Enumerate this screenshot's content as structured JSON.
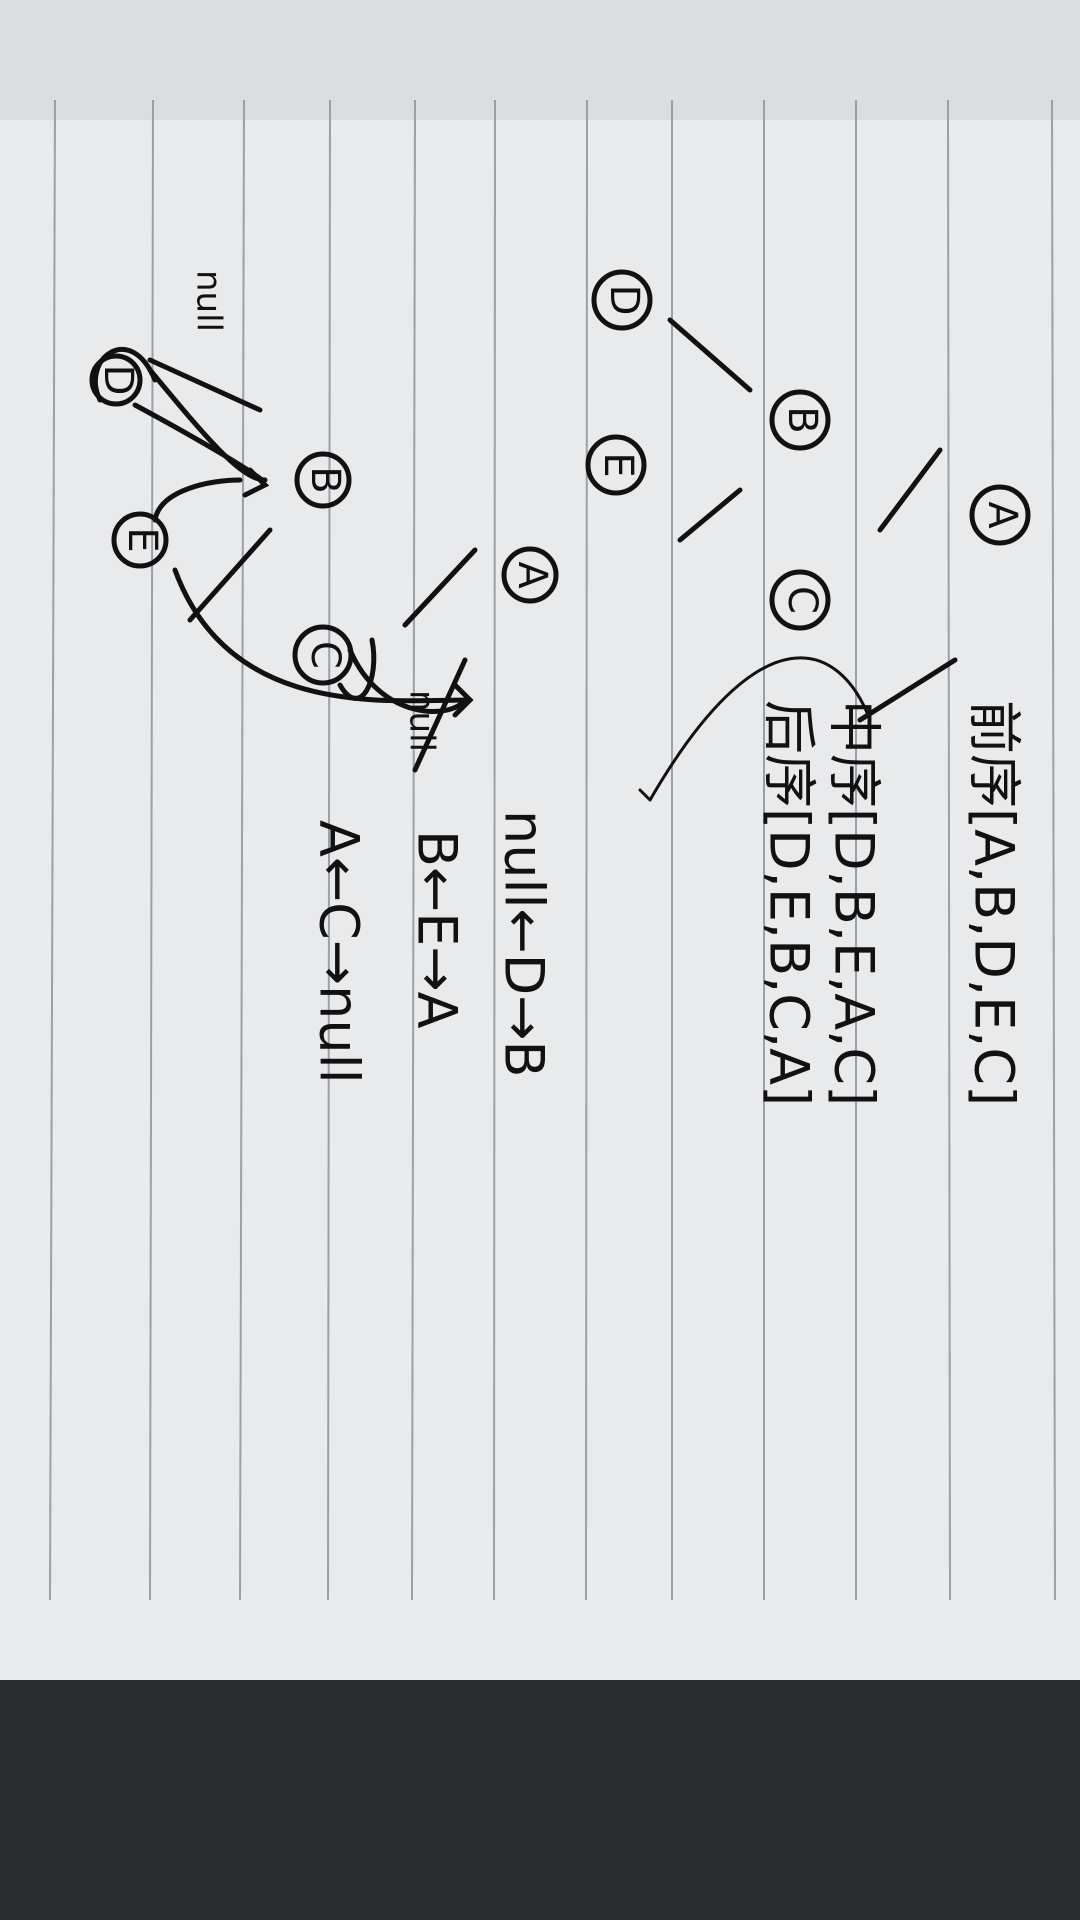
{
  "tree": {
    "nodes": [
      {
        "label": "A"
      },
      {
        "label": "B"
      },
      {
        "label": "C"
      },
      {
        "label": "D"
      },
      {
        "label": "E"
      }
    ]
  },
  "traversals": [
    "前序[A,B,D,E,C]",
    "中序[D,B,E,A,C]",
    "后序[D,E,B,C,A]"
  ],
  "threaded_tree": {
    "nodes": [
      {
        "label": "A"
      },
      {
        "label": "B"
      },
      {
        "label": "C"
      },
      {
        "label": "D"
      },
      {
        "label": "E"
      }
    ],
    "null_labels": [
      "null",
      "null"
    ]
  },
  "threads": [
    "null←D→B",
    "B←E→A",
    "A←C→null"
  ]
}
